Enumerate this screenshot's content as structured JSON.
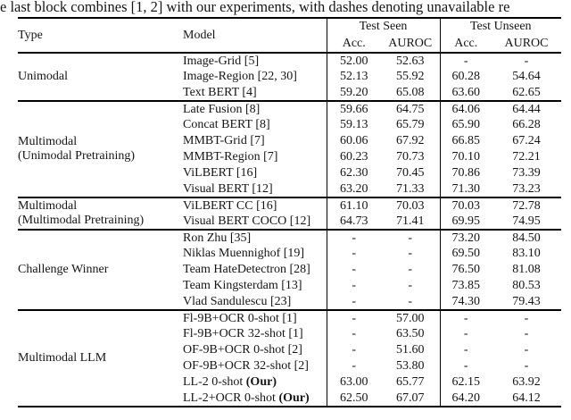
{
  "caption": "e last block combines [1, 2] with our experiments, with dashes denoting unavailable re",
  "table": {
    "header": {
      "type": "Type",
      "model": "Model",
      "groups": [
        {
          "label": "Test Seen"
        },
        {
          "label": "Test Unseen"
        }
      ],
      "sub": [
        "Acc.",
        "AUROC",
        "Acc.",
        "AUROC"
      ]
    },
    "blocks": [
      {
        "type": "Unimodal",
        "rows": [
          {
            "model": "Image-Grid [5]",
            "seen_acc": "52.00",
            "seen_auroc": "52.63",
            "unseen_acc": "-",
            "unseen_auroc": "-"
          },
          {
            "model": "Image-Region [22, 30]",
            "seen_acc": "52.13",
            "seen_auroc": "55.92",
            "unseen_acc": "60.28",
            "unseen_auroc": "54.64"
          },
          {
            "model": "Text BERT [4]",
            "seen_acc": "59.20",
            "seen_auroc": "65.08",
            "unseen_acc": "63.60",
            "unseen_auroc": "62.65"
          }
        ]
      },
      {
        "type": "Multimodal\n(Unimodal Pretraining)",
        "rows": [
          {
            "model": "Late Fusion [8]",
            "seen_acc": "59.66",
            "seen_auroc": "64.75",
            "unseen_acc": "64.06",
            "unseen_auroc": "64.44"
          },
          {
            "model": "Concat BERT [8]",
            "seen_acc": "59.13",
            "seen_auroc": "65.79",
            "unseen_acc": "65.90",
            "unseen_auroc": "66.28"
          },
          {
            "model": "MMBT-Grid [7]",
            "seen_acc": "60.06",
            "seen_auroc": "67.92",
            "unseen_acc": "66.85",
            "unseen_auroc": "67.24"
          },
          {
            "model": "MMBT-Region [7]",
            "seen_acc": "60.23",
            "seen_auroc": "70.73",
            "unseen_acc": "70.10",
            "unseen_auroc": "72.21"
          },
          {
            "model": "ViLBERT [16]",
            "seen_acc": "62.30",
            "seen_auroc": "70.45",
            "unseen_acc": "70.86",
            "unseen_auroc": "73.39"
          },
          {
            "model": "Visual BERT [12]",
            "seen_acc": "63.20",
            "seen_auroc": "71.33",
            "unseen_acc": "71.30",
            "unseen_auroc": "73.23"
          }
        ]
      },
      {
        "type": "Multimodal\n(Multimodal Pretraining)",
        "rows": [
          {
            "model": "ViLBERT CC [16]",
            "seen_acc": "61.10",
            "seen_auroc": "70.03",
            "unseen_acc": "70.03",
            "unseen_auroc": "72.78"
          },
          {
            "model": "Visual BERT COCO [12]",
            "seen_acc": "64.73",
            "seen_auroc": "71.41",
            "unseen_acc": "69.95",
            "unseen_auroc": "74.95"
          }
        ]
      },
      {
        "type": "Challenge Winner",
        "rows": [
          {
            "model": "Ron Zhu [35]",
            "seen_acc": "-",
            "seen_auroc": "-",
            "unseen_acc": "73.20",
            "unseen_auroc": "84.50"
          },
          {
            "model": "Niklas Muennighof [19]",
            "seen_acc": "-",
            "seen_auroc": "-",
            "unseen_acc": "69.50",
            "unseen_auroc": "83.10"
          },
          {
            "model": "Team HateDetectron [28]",
            "seen_acc": "-",
            "seen_auroc": "-",
            "unseen_acc": "76.50",
            "unseen_auroc": "81.08"
          },
          {
            "model": "Team Kingsterdam [13]",
            "seen_acc": "-",
            "seen_auroc": "-",
            "unseen_acc": "73.85",
            "unseen_auroc": "80.53"
          },
          {
            "model": "Vlad Sandulescu [23]",
            "seen_acc": "-",
            "seen_auroc": "-",
            "unseen_acc": "74.30",
            "unseen_auroc": "79.43"
          }
        ]
      },
      {
        "type": "Multimodal LLM",
        "rows": [
          {
            "model": "Fl-9B+OCR 0-shot [1]",
            "seen_acc": "-",
            "seen_auroc": "57.00",
            "unseen_acc": "-",
            "unseen_auroc": "-"
          },
          {
            "model": "Fl-9B+OCR 32-shot [1]",
            "seen_acc": "-",
            "seen_auroc": "63.50",
            "unseen_acc": "-",
            "unseen_auroc": "-"
          },
          {
            "model": "OF-9B+OCR 0-shot [2]",
            "seen_acc": "-",
            "seen_auroc": "51.60",
            "unseen_acc": "-",
            "unseen_auroc": "-"
          },
          {
            "model": "OF-9B+OCR 32-shot [2]",
            "seen_acc": "-",
            "seen_auroc": "53.80",
            "unseen_acc": "-",
            "unseen_auroc": "-"
          },
          {
            "model": "LL-2 0-shot",
            "model_bold": "(Our)",
            "seen_acc": "63.00",
            "seen_auroc": "65.77",
            "unseen_acc": "62.15",
            "unseen_auroc": "63.92"
          },
          {
            "model": "LL-2+OCR 0-shot",
            "model_bold": "(Our)",
            "seen_acc": "62.50",
            "seen_auroc": "67.07",
            "unseen_acc": "64.20",
            "unseen_auroc": "64.12"
          }
        ]
      }
    ]
  }
}
